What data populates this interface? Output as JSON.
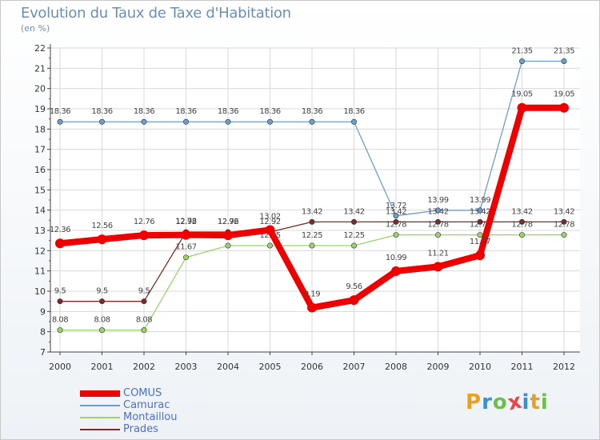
{
  "title": "Evolution du Taux de Taxe d'Habitation",
  "unit_label": "(en %)",
  "brand": {
    "letters": [
      "P",
      "r",
      "o",
      "x",
      "i",
      "t",
      "i"
    ],
    "colors": [
      "#e8a020",
      "#3a8fd0",
      "#6cc04a",
      "#e84848",
      "#3a8fd0",
      "#e8a020",
      "#6cc04a"
    ]
  },
  "chart_data": {
    "type": "line",
    "x": [
      "2000",
      "2001",
      "2002",
      "2003",
      "2004",
      "2005",
      "2006",
      "2007",
      "2008",
      "2009",
      "2010",
      "2011",
      "2012"
    ],
    "ylim": [
      7,
      22
    ],
    "yticks": [
      "7",
      "8",
      "9",
      "10",
      "11",
      "12",
      "13",
      "14",
      "15",
      "16",
      "17",
      "18",
      "19",
      "20",
      "21",
      "22"
    ],
    "grid": true,
    "legend_position": "bottom-left",
    "series": [
      {
        "name": "COMUS",
        "color": "#ee0000",
        "values": [
          12.36,
          12.56,
          12.76,
          12.78,
          12.76,
          13.02,
          9.19,
          9.56,
          10.99,
          11.21,
          11.77,
          19.05,
          19.05
        ],
        "labels": [
          "12.36",
          "12.56",
          "12.76",
          "12.78",
          "12.76",
          "13.02",
          "9.19",
          "9.56",
          "10.99",
          "11.21",
          "11.77",
          "19.05",
          "19.05"
        ]
      },
      {
        "name": "Camurac",
        "color": "#6d9ecb",
        "values": [
          18.36,
          18.36,
          18.36,
          18.36,
          18.36,
          18.36,
          18.36,
          18.36,
          13.72,
          13.99,
          13.99,
          21.35,
          21.35
        ],
        "labels": [
          "18.36",
          "18.36",
          "18.36",
          "18.36",
          "18.36",
          "18.36",
          "18.36",
          "18.36",
          "13.72",
          "13.99",
          "13.99",
          "21.35",
          "21.35"
        ]
      },
      {
        "name": "Montaillou",
        "color": "#9ad46b",
        "values": [
          8.08,
          8.08,
          8.08,
          11.67,
          12.25,
          12.25,
          12.25,
          12.25,
          12.78,
          12.78,
          12.78,
          12.78,
          12.78
        ],
        "labels": [
          "8.08",
          "8.08",
          "8.08",
          "11.67",
          "12.25",
          "12.25",
          "12.25",
          "12.25",
          "12.78",
          "12.78",
          "12.78",
          "12.78",
          "12.78"
        ]
      },
      {
        "name": "Prades",
        "color": "#7a2b2b",
        "values": [
          9.5,
          9.5,
          9.5,
          12.92,
          12.92,
          12.92,
          13.42,
          13.42,
          13.42,
          13.42,
          13.42,
          13.42,
          13.42
        ],
        "labels": [
          "9.5",
          "9.5",
          "9.5",
          "12.92",
          "12.92",
          "12.92",
          "13.42",
          "13.42",
          "13.42",
          "13.42",
          "13.42",
          "13.42",
          "13.42"
        ]
      }
    ]
  }
}
